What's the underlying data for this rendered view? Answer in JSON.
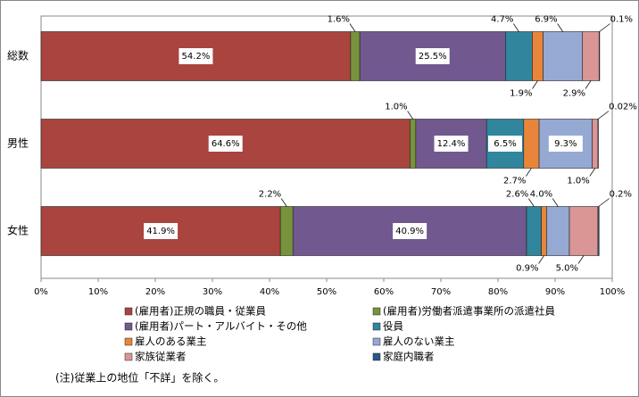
{
  "chart_data": {
    "type": "stacked-hbar",
    "categories": [
      "総数",
      "男性",
      "女性"
    ],
    "series": [
      {
        "name": "(雇用者)正規の職員・従業員",
        "color": "#a9443f",
        "values": [
          54.2,
          64.6,
          41.9
        ],
        "value_labels": [
          "54.2%",
          "64.6%",
          "41.9%"
        ]
      },
      {
        "name": "(雇用者)労働者派遣事業所の派遣社員",
        "color": "#77933c",
        "values": [
          1.6,
          1.0,
          2.2
        ],
        "value_labels": [
          "1.6%",
          "1.0%",
          "2.2%"
        ]
      },
      {
        "name": "(雇用者)パート・アルバイト・その他",
        "color": "#71588f",
        "values": [
          25.5,
          12.4,
          40.9
        ],
        "value_labels": [
          "25.5%",
          "12.4%",
          "40.9%"
        ]
      },
      {
        "name": "役員",
        "color": "#31859c",
        "values": [
          4.7,
          6.5,
          2.6
        ],
        "value_labels": [
          "4.7%",
          "6.5%",
          "2.6%"
        ]
      },
      {
        "name": "雇人のある業主",
        "color": "#e9853a",
        "values": [
          1.9,
          2.7,
          0.9
        ],
        "value_labels": [
          "1.9%",
          "2.7%",
          "0.9%"
        ]
      },
      {
        "name": "雇人のない業主",
        "color": "#95a9d3",
        "values": [
          6.9,
          9.3,
          4.0
        ],
        "value_labels": [
          "6.9%",
          "9.3%",
          "4.0%"
        ]
      },
      {
        "name": "家族従業者",
        "color": "#d99694",
        "values": [
          2.9,
          1.0,
          5.0
        ],
        "value_labels": [
          "2.9%",
          "1.0%",
          "5.0%"
        ]
      },
      {
        "name": "家庭内職者",
        "color": "#2c5589",
        "values": [
          0.1,
          0.02,
          0.2
        ],
        "value_labels": [
          "0.1%",
          "0.02%",
          "0.2%"
        ]
      }
    ],
    "xlim": [
      0,
      100
    ],
    "xticks": [
      {
        "value": 0,
        "label": "0%"
      },
      {
        "value": 10,
        "label": "10%"
      },
      {
        "value": 20,
        "label": "20%"
      },
      {
        "value": 30,
        "label": "30%"
      },
      {
        "value": 40,
        "label": "40%"
      },
      {
        "value": 50,
        "label": "50%"
      },
      {
        "value": 60,
        "label": "60%"
      },
      {
        "value": 70,
        "label": "70%"
      },
      {
        "value": 80,
        "label": "80%"
      },
      {
        "value": 90,
        "label": "90%"
      },
      {
        "value": 100,
        "label": "100%"
      }
    ],
    "note": "(注)従業上の地位「不詳」を除く。"
  }
}
